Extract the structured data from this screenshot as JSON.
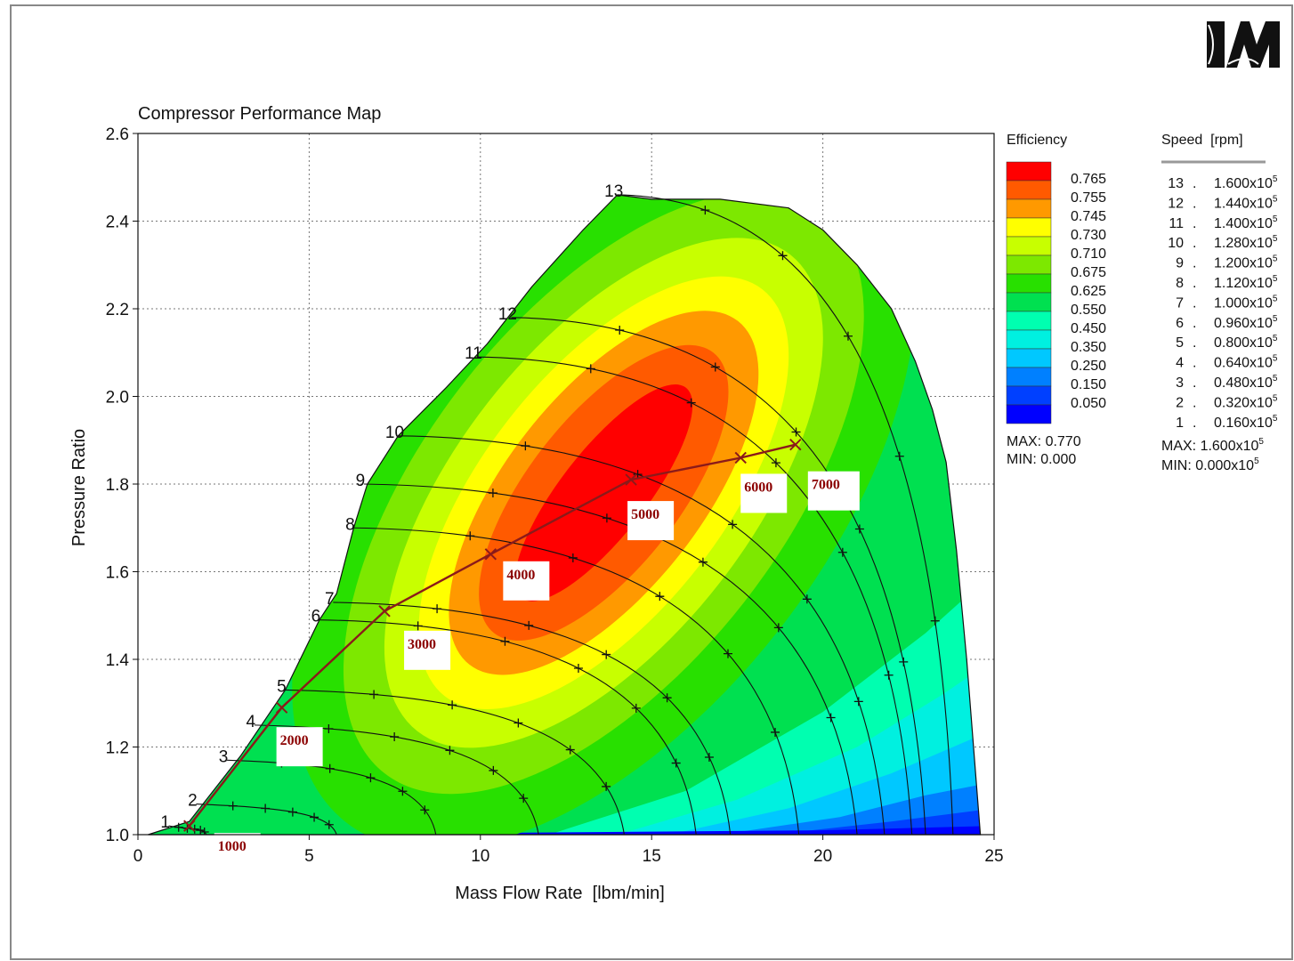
{
  "chart_data": {
    "type": "heatmap",
    "title": "Compressor Performance Map",
    "xlabel": "Mass Flow Rate  [lbm/min]",
    "ylabel": "Pressure Ratio",
    "xlim": [
      0,
      25
    ],
    "ylim": [
      1.0,
      2.6
    ],
    "xticks": [
      "0",
      "5",
      "10",
      "15",
      "20",
      "25"
    ],
    "yticks": [
      "1.0",
      "1.2",
      "1.4",
      "1.6",
      "1.8",
      "2.0",
      "2.2",
      "2.4",
      "2.6"
    ],
    "grid": true,
    "efficiency_legend": {
      "title": "Efficiency",
      "levels": [
        {
          "label": "0.765",
          "color": "#ff0000"
        },
        {
          "label": "0.755",
          "color": "#ff5a00"
        },
        {
          "label": "0.745",
          "color": "#ff9900"
        },
        {
          "label": "0.730",
          "color": "#ffff00"
        },
        {
          "label": "0.710",
          "color": "#c8ff00"
        },
        {
          "label": "0.675",
          "color": "#7de800"
        },
        {
          "label": "0.625",
          "color": "#28e000"
        },
        {
          "label": "0.550",
          "color": "#00e050"
        },
        {
          "label": "0.450",
          "color": "#00ffb0"
        },
        {
          "label": "0.350",
          "color": "#00f0e0"
        },
        {
          "label": "0.250",
          "color": "#00c8ff"
        },
        {
          "label": "0.150",
          "color": "#0080ff"
        },
        {
          "label": "0.050",
          "color": "#0040ff"
        },
        {
          "label": "",
          "color": "#0000ff"
        }
      ],
      "max": "MAX: 0.770",
      "min": "MIN: 0.000"
    },
    "speed_legend": {
      "title": "Speed  [rpm]",
      "entries": [
        {
          "num": "13",
          "value": "1.600x10"
        },
        {
          "num": "12",
          "value": "1.440x10"
        },
        {
          "num": "11",
          "value": "1.400x10"
        },
        {
          "num": "10",
          "value": "1.280x10"
        },
        {
          "num": "9",
          "value": "1.200x10"
        },
        {
          "num": "8",
          "value": "1.120x10"
        },
        {
          "num": "7",
          "value": "1.000x10"
        },
        {
          "num": "6",
          "value": "0.960x10"
        },
        {
          "num": "5",
          "value": "0.800x10"
        },
        {
          "num": "4",
          "value": "0.640x10"
        },
        {
          "num": "3",
          "value": "0.480x10"
        },
        {
          "num": "2",
          "value": "0.320x10"
        },
        {
          "num": "1",
          "value": "0.160x10"
        }
      ],
      "exp": "5",
      "max": "MAX: 1.600x10",
      "min": "MIN: 0.000x10"
    },
    "speed_lines": [
      {
        "label": "1",
        "surge": [
          0.9,
          1.02
        ],
        "choke": [
          2.0,
          1.0
        ]
      },
      {
        "label": "2",
        "surge": [
          1.7,
          1.07
        ],
        "choke": [
          5.8,
          1.0
        ]
      },
      {
        "label": "3",
        "surge": [
          2.6,
          1.17
        ],
        "choke": [
          8.7,
          1.0
        ]
      },
      {
        "label": "4",
        "surge": [
          3.4,
          1.25
        ],
        "choke": [
          11.7,
          1.0
        ]
      },
      {
        "label": "5",
        "surge": [
          4.3,
          1.33
        ],
        "choke": [
          14.2,
          1.0
        ]
      },
      {
        "label": "6",
        "surge": [
          5.3,
          1.49
        ],
        "choke": [
          16.3,
          1.0
        ]
      },
      {
        "label": "7",
        "surge": [
          5.7,
          1.53
        ],
        "choke": [
          17.3,
          1.0
        ]
      },
      {
        "label": "8",
        "surge": [
          6.3,
          1.7
        ],
        "choke": [
          19.3,
          1.0
        ]
      },
      {
        "label": "9",
        "surge": [
          6.6,
          1.8
        ],
        "choke": [
          21.0,
          1.0
        ]
      },
      {
        "label": "10",
        "surge": [
          7.6,
          1.91
        ],
        "choke": [
          21.8,
          1.0
        ]
      },
      {
        "label": "11",
        "surge": [
          9.9,
          2.09
        ],
        "choke": [
          22.6,
          1.0
        ]
      },
      {
        "label": "12",
        "surge": [
          10.9,
          2.18
        ],
        "choke": [
          23.0,
          1.0
        ]
      },
      {
        "label": "13",
        "surge": [
          14.0,
          2.46
        ],
        "choke": [
          23.8,
          1.0
        ]
      }
    ],
    "operating_line": {
      "points": [
        {
          "x": 1.5,
          "y": 1.02,
          "label": "1000"
        },
        {
          "x": 4.2,
          "y": 1.29,
          "label": "2000"
        },
        {
          "x": 7.2,
          "y": 1.51,
          "label": "3000"
        },
        {
          "x": 10.3,
          "y": 1.64,
          "label": "4000"
        },
        {
          "x": 14.4,
          "y": 1.81,
          "label": "5000"
        },
        {
          "x": 17.6,
          "y": 1.86,
          "label": "6000"
        },
        {
          "x": 19.2,
          "y": 1.89,
          "label": "7000"
        }
      ],
      "color": "#8b1a1a"
    }
  }
}
